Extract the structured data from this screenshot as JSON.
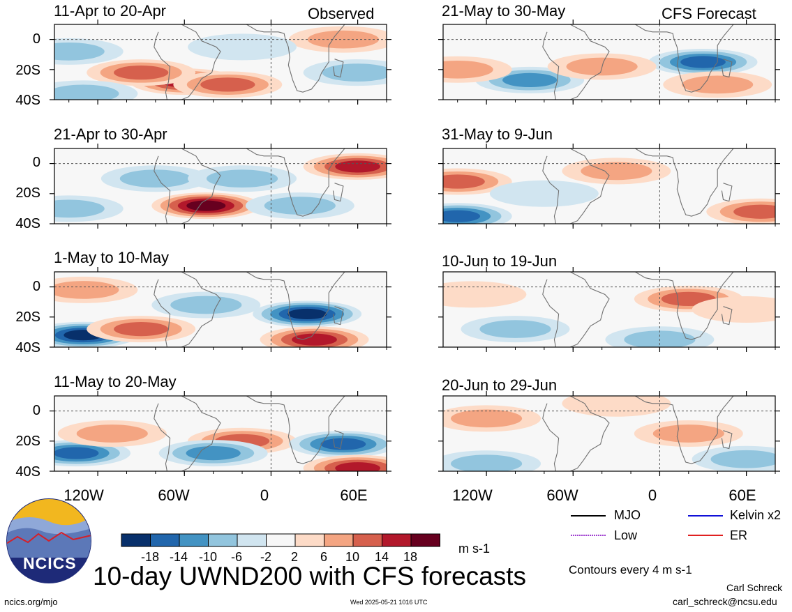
{
  "title": "10-day UWND200 with CFS forecasts",
  "observed_label": "Observed",
  "forecast_label": "CFS Forecast",
  "units": "m s-1",
  "contour_note": "Contours every 4 m s-1",
  "author": "Carl Schreck",
  "email": "carl_schreck@ncsu.edu",
  "site": "ncics.org/mjo",
  "timestamp": "Wed 2025-05-21 1016 UTC",
  "logo_text": "NCICS",
  "legend": [
    {
      "name": "MJO",
      "color": "#000000",
      "style": "solid"
    },
    {
      "name": "Kelvin x2",
      "color": "#1010d8",
      "style": "solid"
    },
    {
      "name": "Low",
      "color": "#a040d0",
      "style": "dotted"
    },
    {
      "name": "ER",
      "color": "#e02020",
      "style": "solid"
    }
  ],
  "colorbar": {
    "colors": [
      "#08306b",
      "#2166ac",
      "#4393c3",
      "#92c5de",
      "#d1e5f0",
      "#f7f7f7",
      "#fddbc7",
      "#f4a582",
      "#d6604d",
      "#b2182b",
      "#67001f"
    ],
    "ticks": [
      "-18",
      "-14",
      "-10",
      "-6",
      "-2",
      "2",
      "6",
      "10",
      "14",
      "18"
    ]
  },
  "panels": {
    "left": [
      {
        "period": "11-Apr to 20-Apr"
      },
      {
        "period": "21-Apr to 30-Apr"
      },
      {
        "period": "1-May to 10-May"
      },
      {
        "period": "11-May to 20-May"
      }
    ],
    "right": [
      {
        "period": "21-May to 30-May"
      },
      {
        "period": "31-May to 9-Jun"
      },
      {
        "period": "10-Jun to 19-Jun"
      },
      {
        "period": "20-Jun to 29-Jun"
      }
    ]
  },
  "chart_data": {
    "type": "heatmap",
    "variable": "200-hPa zonal wind anomaly",
    "x_ticks": [
      "120W",
      "60W",
      "0",
      "60E"
    ],
    "y_ticks": [
      "0",
      "20S",
      "40S"
    ],
    "xlim": [
      -150,
      80
    ],
    "ylim": [
      -40,
      10
    ],
    "color_levels": [
      -18,
      -14,
      -10,
      -6,
      -2,
      2,
      6,
      10,
      14,
      18
    ],
    "anomaly_features": [
      [
        {
          "lon": -60,
          "lat": -28,
          "value": 16
        },
        {
          "lon": -90,
          "lat": -22,
          "value": 12
        },
        {
          "lon": -30,
          "lat": -30,
          "value": 12
        },
        {
          "lon": -140,
          "lat": -8,
          "value": -6
        },
        {
          "lon": -130,
          "lat": -36,
          "value": -8
        },
        {
          "lon": 60,
          "lat": -22,
          "value": -8
        },
        {
          "lon": 50,
          "lat": 0,
          "value": 8
        },
        {
          "lon": -20,
          "lat": -5,
          "value": -4
        }
      ],
      [
        {
          "lon": -45,
          "lat": -28,
          "value": 18
        },
        {
          "lon": 60,
          "lat": -2,
          "value": 14
        },
        {
          "lon": -140,
          "lat": -30,
          "value": -8
        },
        {
          "lon": -80,
          "lat": -10,
          "value": -8
        },
        {
          "lon": -20,
          "lat": -10,
          "value": -6
        },
        {
          "lon": 20,
          "lat": -28,
          "value": -6
        }
      ],
      [
        {
          "lon": -130,
          "lat": -32,
          "value": -18
        },
        {
          "lon": 25,
          "lat": -18,
          "value": -18
        },
        {
          "lon": 30,
          "lat": -35,
          "value": 16
        },
        {
          "lon": -90,
          "lat": -28,
          "value": 10
        },
        {
          "lon": -45,
          "lat": -12,
          "value": -8
        },
        {
          "lon": -130,
          "lat": -2,
          "value": 6
        }
      ],
      [
        {
          "lon": -135,
          "lat": -28,
          "value": -14
        },
        {
          "lon": -20,
          "lat": -20,
          "value": 10
        },
        {
          "lon": 50,
          "lat": -22,
          "value": -14
        },
        {
          "lon": -40,
          "lat": -28,
          "value": -10
        },
        {
          "lon": 60,
          "lat": -38,
          "value": 14
        },
        {
          "lon": -110,
          "lat": -15,
          "value": 6
        }
      ],
      [
        {
          "lon": 30,
          "lat": -15,
          "value": -14
        },
        {
          "lon": -90,
          "lat": -27,
          "value": -10
        },
        {
          "lon": -40,
          "lat": -18,
          "value": 8
        },
        {
          "lon": -140,
          "lat": -20,
          "value": 6
        },
        {
          "lon": 40,
          "lat": -30,
          "value": 6
        }
      ],
      [
        {
          "lon": -140,
          "lat": -12,
          "value": 12
        },
        {
          "lon": -30,
          "lat": -5,
          "value": 8
        },
        {
          "lon": -140,
          "lat": -35,
          "value": -14
        },
        {
          "lon": 70,
          "lat": -32,
          "value": 10
        },
        {
          "lon": -80,
          "lat": -20,
          "value": -4
        }
      ],
      [
        {
          "lon": 20,
          "lat": -8,
          "value": 10
        },
        {
          "lon": -130,
          "lat": -5,
          "value": 4
        },
        {
          "lon": -100,
          "lat": -28,
          "value": -6
        },
        {
          "lon": 0,
          "lat": -35,
          "value": -6
        },
        {
          "lon": 60,
          "lat": -15,
          "value": 4
        }
      ],
      [
        {
          "lon": -120,
          "lat": -5,
          "value": 8
        },
        {
          "lon": 20,
          "lat": -15,
          "value": 6
        },
        {
          "lon": -120,
          "lat": -35,
          "value": -6
        },
        {
          "lon": 60,
          "lat": -32,
          "value": -6
        },
        {
          "lon": -30,
          "lat": 5,
          "value": 4
        }
      ]
    ]
  }
}
